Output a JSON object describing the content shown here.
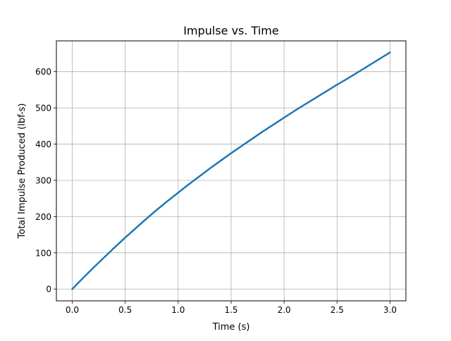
{
  "chart_data": {
    "type": "line",
    "title": "Impulse vs. Time",
    "xlabel": "Time (s)",
    "ylabel": "Total Impulse Produced (lbf-s)",
    "xlim": [
      -0.15,
      3.15
    ],
    "ylim": [
      -32.6,
      685
    ],
    "xticks": [
      0.0,
      0.5,
      1.0,
      1.5,
      2.0,
      2.5,
      3.0
    ],
    "xtick_labels": [
      "0.0",
      "0.5",
      "1.0",
      "1.5",
      "2.0",
      "2.5",
      "3.0"
    ],
    "yticks": [
      0,
      100,
      200,
      300,
      400,
      500,
      600
    ],
    "ytick_labels": [
      "0",
      "100",
      "200",
      "300",
      "400",
      "500",
      "600"
    ],
    "grid": true,
    "series": [
      {
        "color": "#1f77b4",
        "x": [
          0.0,
          0.1,
          0.2,
          0.3,
          0.4,
          0.5,
          0.6,
          0.7,
          0.8,
          0.9,
          1.0,
          1.1,
          1.2,
          1.3,
          1.4,
          1.5,
          1.6,
          1.7,
          1.8,
          1.9,
          2.0,
          2.1,
          2.2,
          2.3,
          2.4,
          2.5,
          2.6,
          2.7,
          2.8,
          2.9,
          3.0
        ],
        "y": [
          0,
          30,
          59,
          87,
          115,
          142,
          168,
          194,
          219,
          243,
          266,
          289,
          311,
          333,
          354,
          375,
          395,
          415,
          435,
          454,
          473,
          492,
          510,
          528,
          546,
          564,
          581,
          599,
          617,
          635,
          653
        ]
      }
    ]
  }
}
